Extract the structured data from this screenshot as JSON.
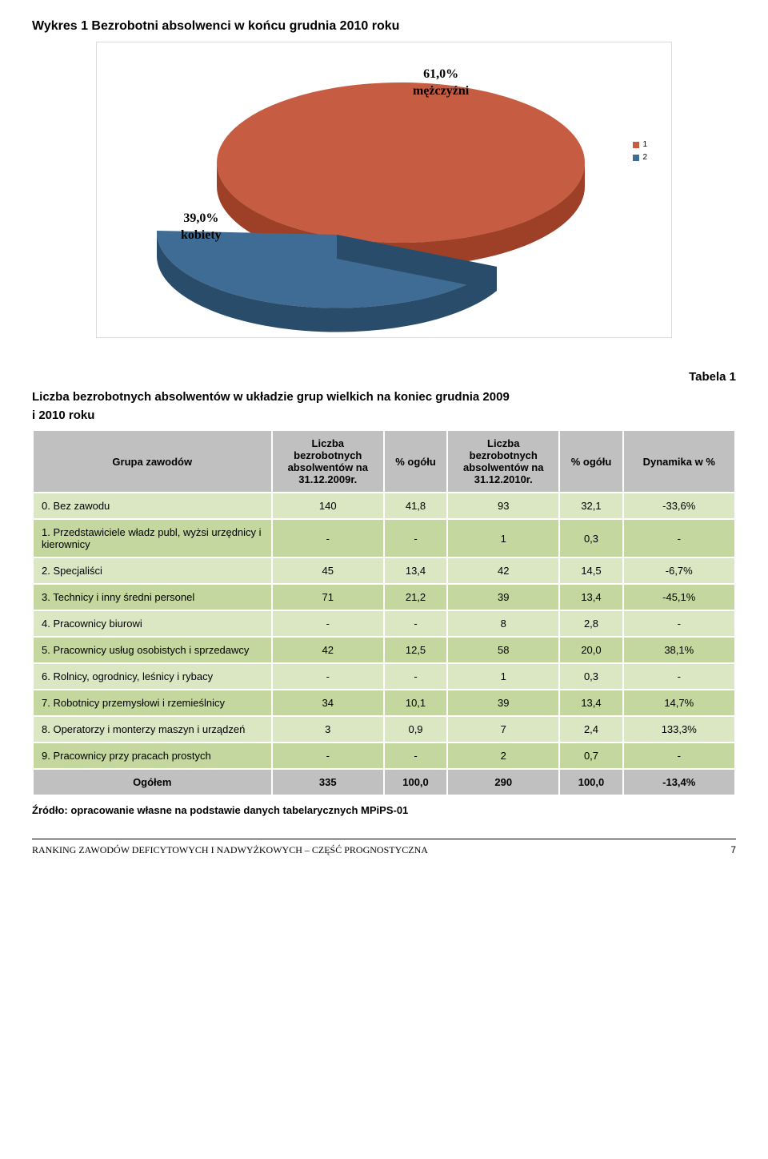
{
  "chart": {
    "title": "Wykres 1  Bezrobotni absolwenci w końcu grudnia 2010 roku",
    "type": "pie3d",
    "background_color": "#ffffff",
    "border_color": "#dcdcdc",
    "slices": [
      {
        "label_pct": "61,0%",
        "label_name": "mężczyźni",
        "value": 61.0,
        "color_top": "#c65d42",
        "color_side": "#9e3f28"
      },
      {
        "label_pct": "39,0%",
        "label_name": "kobiety",
        "value": 39.0,
        "color_top": "#3e6c94",
        "color_side": "#2a4c6b"
      }
    ],
    "legend": [
      {
        "label": "1",
        "color": "#c65d42"
      },
      {
        "label": "2",
        "color": "#3e6c94"
      }
    ],
    "label_font_family": "Times New Roman",
    "label_font_size_pt": 12,
    "label_weight": "bold"
  },
  "table": {
    "caption_right": "Tabela 1",
    "caption_line1": "Liczba bezrobotnych absolwentów w układzie grup wielkich na koniec grudnia 2009",
    "caption_line2": "i 2010 roku",
    "header_bg": "#c0c0c0",
    "odd_bg": "#dbe6c3",
    "even_bg": "#c3d79e",
    "border_color": "#ffffff",
    "columns": [
      "Grupa zawodów",
      "Liczba bezrobotnych absolwentów na 31.12.2009r.",
      "% ogółu",
      "Liczba bezrobotnych absolwentów na 31.12.2010r.",
      "% ogółu",
      "Dynamika w %"
    ],
    "rows": [
      {
        "label": "0. Bez zawodu",
        "c1": "140",
        "c2": "41,8",
        "c3": "93",
        "c4": "32,1",
        "c5": "-33,6%"
      },
      {
        "label": "1. Przedstawiciele władz publ, wyżsi urzędnicy i kierownicy",
        "c1": "-",
        "c2": "-",
        "c3": "1",
        "c4": "0,3",
        "c5": "-"
      },
      {
        "label": "2. Specjaliści",
        "c1": "45",
        "c2": "13,4",
        "c3": "42",
        "c4": "14,5",
        "c5": "-6,7%"
      },
      {
        "label": "3. Technicy i inny średni personel",
        "c1": "71",
        "c2": "21,2",
        "c3": "39",
        "c4": "13,4",
        "c5": "-45,1%"
      },
      {
        "label": "4. Pracownicy biurowi",
        "c1": "-",
        "c2": "-",
        "c3": "8",
        "c4": "2,8",
        "c5": "-"
      },
      {
        "label": "5. Pracownicy usług osobistych i sprzedawcy",
        "c1": "42",
        "c2": "12,5",
        "c3": "58",
        "c4": "20,0",
        "c5": "38,1%"
      },
      {
        "label": "6. Rolnicy, ogrodnicy, leśnicy i rybacy",
        "c1": "-",
        "c2": "-",
        "c3": "1",
        "c4": "0,3",
        "c5": "-"
      },
      {
        "label": "7. Robotnicy przemysłowi i rzemieślnicy",
        "c1": "34",
        "c2": "10,1",
        "c3": "39",
        "c4": "13,4",
        "c5": "14,7%"
      },
      {
        "label": "8. Operatorzy i monterzy maszyn i urządzeń",
        "c1": "3",
        "c2": "0,9",
        "c3": "7",
        "c4": "2,4",
        "c5": "133,3%"
      },
      {
        "label": "9. Pracownicy przy pracach prostych",
        "c1": "-",
        "c2": "-",
        "c3": "2",
        "c4": "0,7",
        "c5": "-"
      }
    ],
    "total": {
      "label": "Ogółem",
      "c1": "335",
      "c2": "100,0",
      "c3": "290",
      "c4": "100,0",
      "c5": "-13,4%"
    }
  },
  "source": "Źródło: opracowanie własne na podstawie danych tabelarycznych MPiPS-01",
  "footer": {
    "left": "RANKING ZAWODÓW DEFICYTOWYCH I NADWYŻKOWYCH – CZĘŚĆ PROGNOSTYCZNA",
    "page": "7"
  }
}
